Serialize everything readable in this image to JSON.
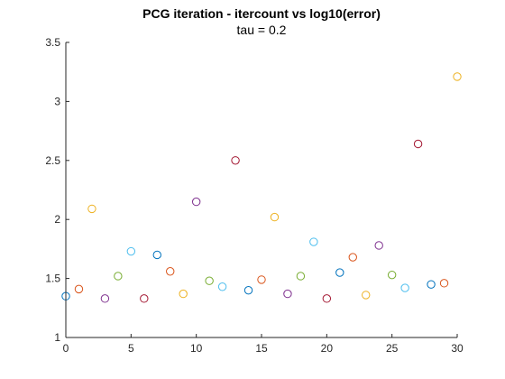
{
  "chart_data": {
    "type": "scatter",
    "title": "PCG iteration - itercount vs log10(error)",
    "subtitle": "tau = 0.2",
    "xlabel": "",
    "ylabel": "",
    "xlim": [
      0,
      30
    ],
    "ylim": [
      1,
      3.5
    ],
    "x_ticks": [
      0,
      5,
      10,
      15,
      20,
      25,
      30
    ],
    "y_ticks": [
      1,
      1.5,
      2,
      2.5,
      3,
      3.5
    ],
    "x_tick_labels": [
      "0",
      "5",
      "10",
      "15",
      "20",
      "25",
      "30"
    ],
    "y_tick_labels": [
      "1",
      "1.5",
      "2",
      "2.5",
      "3",
      "3.5"
    ],
    "grid": false,
    "legend": false,
    "marker": "open-circle",
    "color_cycle": [
      "#0072BD",
      "#D95319",
      "#EDB120",
      "#7E2F8E",
      "#77AC30",
      "#4DBEEE",
      "#A2142F"
    ],
    "points": [
      {
        "x": 0,
        "y": 1.35
      },
      {
        "x": 1,
        "y": 1.41
      },
      {
        "x": 2,
        "y": 2.09
      },
      {
        "x": 3,
        "y": 1.33
      },
      {
        "x": 4,
        "y": 1.52
      },
      {
        "x": 5,
        "y": 1.73
      },
      {
        "x": 6,
        "y": 1.33
      },
      {
        "x": 7,
        "y": 1.7
      },
      {
        "x": 8,
        "y": 1.56
      },
      {
        "x": 9,
        "y": 1.37
      },
      {
        "x": 10,
        "y": 2.15
      },
      {
        "x": 11,
        "y": 1.48
      },
      {
        "x": 12,
        "y": 1.43
      },
      {
        "x": 13,
        "y": 2.5
      },
      {
        "x": 14,
        "y": 1.4
      },
      {
        "x": 15,
        "y": 1.49
      },
      {
        "x": 16,
        "y": 2.02
      },
      {
        "x": 17,
        "y": 1.37
      },
      {
        "x": 18,
        "y": 1.52
      },
      {
        "x": 19,
        "y": 1.81
      },
      {
        "x": 20,
        "y": 1.33
      },
      {
        "x": 21,
        "y": 1.55
      },
      {
        "x": 22,
        "y": 1.68
      },
      {
        "x": 23,
        "y": 1.36
      },
      {
        "x": 24,
        "y": 1.78
      },
      {
        "x": 25,
        "y": 1.53
      },
      {
        "x": 26,
        "y": 1.42
      },
      {
        "x": 27,
        "y": 2.64
      },
      {
        "x": 28,
        "y": 1.45
      },
      {
        "x": 29,
        "y": 1.46
      },
      {
        "x": 30,
        "y": 3.21
      }
    ]
  }
}
